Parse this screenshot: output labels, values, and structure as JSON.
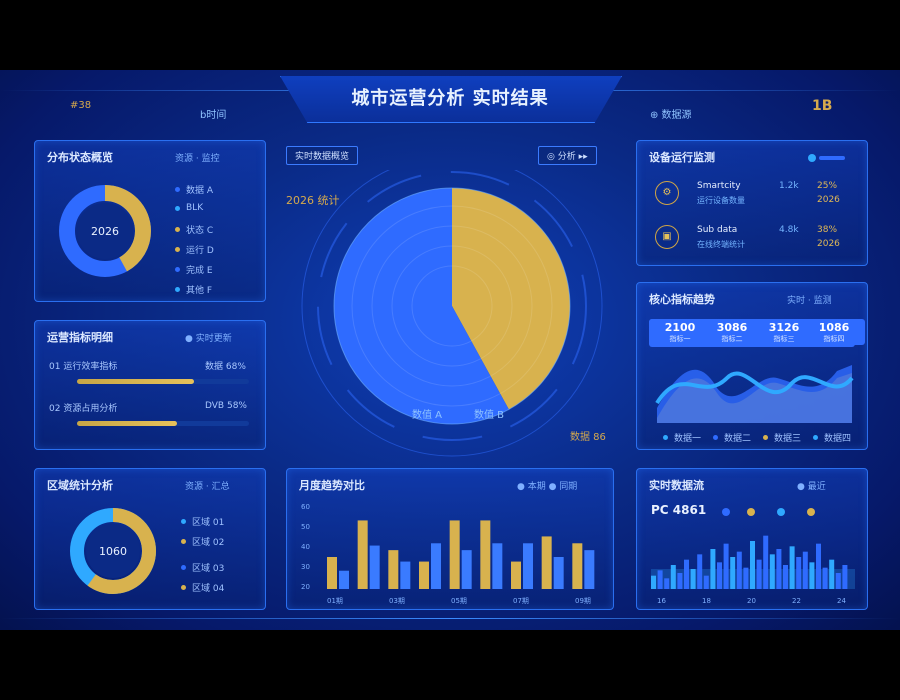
{
  "header": {
    "title": "城市运营分析 实时结果",
    "left_code": "#38",
    "left_tag": "b时间",
    "right_code": "1B",
    "right_tag": "⊕ 数据源"
  },
  "left_top": {
    "title": "分布状态概览",
    "meta": "资源 · 监控",
    "center": "2026",
    "legend": [
      "数据 A",
      "BLK",
      "状态 C",
      "运行 D",
      "完成 E",
      "其他 F"
    ],
    "series": [
      {
        "name": "gold",
        "value": 42,
        "color": "#d8b24e"
      },
      {
        "name": "blue",
        "value": 58,
        "color": "#2f6bff"
      }
    ]
  },
  "left_mid": {
    "title": "运营指标明细",
    "meta": "● 实时更新",
    "rows": [
      {
        "label": "01 运行效率指标",
        "right": "数据 68%",
        "pct": 0.68
      },
      {
        "label": "02 资源占用分析",
        "right": "DVB 58%",
        "pct": 0.58
      }
    ]
  },
  "left_bottom": {
    "title": "区域统计分析",
    "meta": "资源 · 汇总",
    "center": "1060",
    "legend": [
      "区域 01",
      "区域 02",
      "区域 03",
      "区域 04"
    ],
    "series": [
      {
        "name": "gold",
        "value": 60,
        "color": "#d8b24e"
      },
      {
        "name": "cyan",
        "value": 40,
        "color": "#2fa9ff"
      }
    ]
  },
  "center_top": {
    "chip_left": "实时数据概览",
    "chip_right": "◎ 分析 ▸▸",
    "label_top": "2026 统计",
    "label_bl": "数值 A",
    "label_br": "数值 B",
    "label_tag": "数据 86"
  },
  "center_pie": {
    "chart_data": {
      "type": "pie",
      "labels": [
        "gold",
        "blue"
      ],
      "values": [
        42,
        58
      ],
      "colors": [
        "#d8b24e",
        "#2f6bff"
      ]
    }
  },
  "center_bottom": {
    "title": "月度趋势对比",
    "meta": "● 本期  ● 同期",
    "chart_data": {
      "type": "bar",
      "categories": [
        "01",
        "02",
        "03",
        "04",
        "05",
        "06",
        "07",
        "08",
        "09"
      ],
      "series": [
        {
          "values": [
            28,
            60,
            34,
            24,
            60,
            60,
            24,
            46,
            40
          ],
          "color": "#d8b24e"
        },
        {
          "values": [
            16,
            38,
            24,
            40,
            34,
            40,
            40,
            28,
            34
          ],
          "color": "#3a7bff"
        }
      ],
      "ylim": [
        0,
        70
      ]
    },
    "yticks": [
      "60",
      "50",
      "40",
      "30",
      "20"
    ],
    "xticks": [
      "01期",
      "03期",
      "05期",
      "07期",
      "09期"
    ]
  },
  "right_top": {
    "title": "设备运行监测",
    "rows": [
      {
        "icon": "⚙",
        "name": "Smartcity",
        "sub": "运行设备数量",
        "v1": "1.2k",
        "v2": "25%",
        "v3": "2026"
      },
      {
        "icon": "▣",
        "name": "Sub data",
        "sub": "在线终端统计",
        "v1": "4.8k",
        "v2": "38%",
        "v3": "2026"
      }
    ]
  },
  "right_mid": {
    "title": "核心指标趋势",
    "meta": "实时 · 监测",
    "boxes": [
      {
        "v": "2100",
        "s": "指标一"
      },
      {
        "v": "3086",
        "s": "指标二"
      },
      {
        "v": "3126",
        "s": "指标三"
      },
      {
        "v": "1086",
        "s": "指标四"
      }
    ],
    "legend": [
      "数据一",
      "数据二",
      "数据三",
      "数据四"
    ]
  },
  "right_bottom": {
    "title": "实时数据流",
    "meta": "● 最近",
    "stat": "PC 4861",
    "chart_data": {
      "type": "bar",
      "values": [
        10,
        14,
        8,
        18,
        12,
        22,
        15,
        26,
        10,
        30,
        20,
        34,
        24,
        28,
        16,
        36,
        22,
        40,
        26,
        30,
        18,
        32,
        24,
        28,
        20,
        34,
        16,
        22,
        12,
        18
      ],
      "ylim": [
        0,
        45
      ]
    },
    "xticks": [
      "16",
      "18",
      "20",
      "22",
      "24"
    ]
  }
}
